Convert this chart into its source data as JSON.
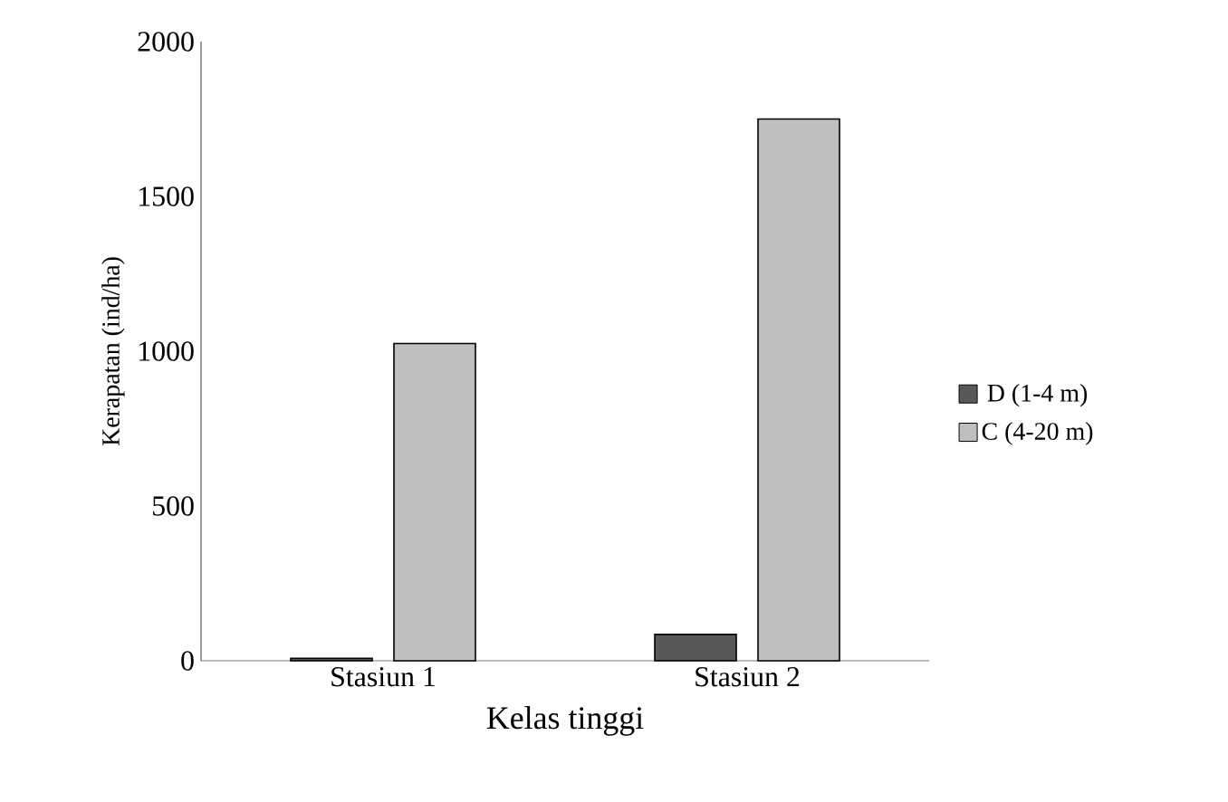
{
  "chart_data": {
    "type": "bar",
    "xlabel": "Kelas tinggi",
    "ylabel": "Kerapatan (ind/ha)",
    "categories": [
      "Stasiun 1",
      "Stasiun 2"
    ],
    "series": [
      {
        "name": "D (1-4 m)",
        "color": "#595959",
        "values": [
          8,
          85
        ]
      },
      {
        "name": "C (4-20 m)",
        "color": "#bfbfbf",
        "values": [
          1025,
          1750
        ]
      }
    ],
    "ylim": [
      0,
      2000
    ],
    "yticks": [
      0,
      500,
      1000,
      1500,
      2000
    ],
    "grid": false,
    "legend": "right"
  }
}
